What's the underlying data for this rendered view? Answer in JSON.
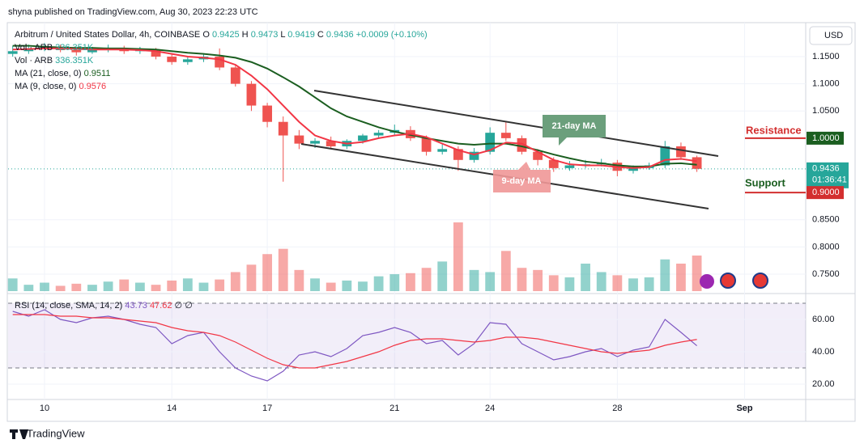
{
  "header": {
    "publisher": "shyna published on TradingView.com, Aug 30, 2023 22:23 UTC",
    "currency": "USD",
    "footer": "TradingView"
  },
  "chart_data": [
    {
      "type": "candlestick",
      "legend": {
        "symbol": "Arbitrum / United States Dollar, 4h, COINBASE",
        "ohlc": [
          {
            "key": "O",
            "value": 0.9425
          },
          {
            "key": "H",
            "value": 0.9473
          },
          {
            "key": "L",
            "value": 0.9419
          },
          {
            "key": "C",
            "value": 0.9436
          }
        ],
        "change": "+0.0009 (+0.10%)",
        "volume": [
          {
            "name": "Vol · ARB",
            "value": "336.351K"
          },
          {
            "name": "Vol · ARB",
            "value": "336.351K"
          }
        ],
        "mas": [
          {
            "name": "MA (21, close, 0)",
            "value": 0.9511
          },
          {
            "name": "MA (9, close, 0)",
            "value": 0.9576
          }
        ]
      },
      "x": [
        9,
        9.5,
        10,
        10.5,
        11,
        11.5,
        12,
        12.5,
        13,
        13.5,
        14,
        14.5,
        15,
        15.5,
        16,
        16.5,
        17,
        17.5,
        18,
        18.5,
        19,
        19.5,
        20,
        20.5,
        21,
        21.5,
        22,
        22.5,
        23,
        23.5,
        24,
        24.5,
        25,
        25.5,
        26,
        26.5,
        27,
        27.5,
        28,
        28.5,
        29,
        29.5,
        30,
        30.5
      ],
      "open": [
        1.155,
        1.16,
        1.165,
        1.168,
        1.162,
        1.158,
        1.163,
        1.165,
        1.16,
        1.162,
        1.15,
        1.14,
        1.145,
        1.15,
        1.13,
        1.1,
        1.06,
        1.03,
        1.005,
        0.99,
        0.995,
        0.985,
        0.995,
        1.005,
        1.01,
        1.015,
        1.0,
        0.975,
        0.98,
        0.96,
        0.975,
        1.01,
        1.0,
        0.975,
        0.96,
        0.945,
        0.95,
        0.952,
        0.955,
        0.94,
        0.945,
        0.95,
        0.985,
        0.965
      ],
      "high": [
        1.17,
        1.172,
        1.175,
        1.172,
        1.166,
        1.168,
        1.172,
        1.17,
        1.168,
        1.166,
        1.155,
        1.15,
        1.155,
        1.165,
        1.135,
        1.105,
        1.065,
        1.04,
        1.015,
        1.0,
        1.003,
        0.998,
        1.008,
        1.015,
        1.025,
        1.022,
        1.005,
        0.99,
        0.985,
        0.982,
        1.02,
        1.03,
        1.005,
        0.98,
        0.965,
        0.958,
        0.96,
        0.962,
        0.96,
        0.95,
        0.955,
        0.995,
        0.992,
        0.968
      ],
      "low": [
        1.15,
        1.155,
        1.16,
        1.158,
        1.152,
        1.155,
        1.158,
        1.155,
        1.155,
        1.145,
        1.135,
        1.135,
        1.14,
        1.125,
        1.095,
        1.05,
        1.02,
        0.92,
        0.98,
        0.982,
        0.98,
        0.98,
        0.99,
        1.0,
        1.005,
        0.995,
        0.968,
        0.97,
        0.94,
        0.955,
        0.97,
        0.995,
        0.97,
        0.95,
        0.938,
        0.94,
        0.945,
        0.948,
        0.93,
        0.935,
        0.942,
        0.945,
        0.96,
        0.938
      ],
      "close": [
        1.16,
        1.165,
        1.168,
        1.162,
        1.158,
        1.163,
        1.165,
        1.16,
        1.162,
        1.15,
        1.14,
        1.145,
        1.15,
        1.13,
        1.1,
        1.06,
        1.03,
        1.005,
        0.99,
        0.995,
        0.985,
        0.995,
        1.005,
        1.01,
        1.015,
        1.0,
        0.975,
        0.98,
        0.96,
        0.975,
        1.01,
        1.0,
        0.975,
        0.96,
        0.945,
        0.95,
        0.952,
        0.955,
        0.94,
        0.945,
        0.95,
        0.985,
        0.965,
        0.9436
      ],
      "volume": [
        120,
        60,
        80,
        50,
        70,
        60,
        90,
        110,
        80,
        60,
        100,
        120,
        80,
        110,
        180,
        250,
        350,
        400,
        200,
        120,
        80,
        100,
        90,
        140,
        160,
        170,
        220,
        280,
        650,
        200,
        180,
        380,
        220,
        200,
        150,
        130,
        260,
        180,
        150,
        120,
        130,
        300,
        260,
        336.351
      ],
      "series": [
        {
          "name": "MA 21",
          "color": "#1b5e20",
          "values": [
            1.17,
            1.17,
            1.168,
            1.167,
            1.166,
            1.166,
            1.165,
            1.165,
            1.164,
            1.163,
            1.16,
            1.157,
            1.155,
            1.152,
            1.148,
            1.14,
            1.128,
            1.112,
            1.095,
            1.075,
            1.055,
            1.04,
            1.03,
            1.02,
            1.012,
            1.006,
            1.0,
            0.995,
            0.99,
            0.988,
            0.99,
            0.99,
            0.985,
            0.978,
            0.97,
            0.963,
            0.957,
            0.954,
            0.95,
            0.948,
            0.948,
            0.953,
            0.954,
            0.9511
          ]
        },
        {
          "name": "MA 9",
          "color": "#f23645",
          "values": [
            1.163,
            1.164,
            1.165,
            1.165,
            1.164,
            1.163,
            1.163,
            1.163,
            1.162,
            1.16,
            1.155,
            1.15,
            1.148,
            1.145,
            1.135,
            1.115,
            1.09,
            1.06,
            1.03,
            1.005,
            0.995,
            0.99,
            0.993,
            1.0,
            1.005,
            1.008,
            1.002,
            0.99,
            0.978,
            0.97,
            0.978,
            0.992,
            0.99,
            0.975,
            0.96,
            0.952,
            0.95,
            0.95,
            0.947,
            0.945,
            0.947,
            0.96,
            0.962,
            0.9576
          ]
        }
      ],
      "up_color": "#26a69a",
      "down_color": "#ef5350",
      "xlim": [
        8.855,
        33.92
      ],
      "ylim": [
        0.7188,
        1.2095
      ],
      "xticks": [
        10,
        14,
        17,
        21,
        24,
        28,
        {
          "value": 32,
          "label": "Sep"
        }
      ],
      "yticks": [
        {
          "value": 0.75,
          "label": "0.7500"
        },
        {
          "value": 0.8,
          "label": "0.8000"
        },
        {
          "value": 0.85,
          "label": "0.8500"
        },
        {
          "value": 1.05,
          "label": "1.0500"
        },
        {
          "value": 1.1,
          "label": "1.1000"
        },
        {
          "value": 1.15,
          "label": "1.1500"
        }
      ],
      "annotations": {
        "ma21": "21-day MA",
        "ma9": "9-day MA",
        "resistance": "Resistance",
        "support": "Support"
      },
      "levels": [
        {
          "value": 1,
          "label": "1.0000"
        },
        {
          "value": 0.9,
          "label": "0.9000"
        }
      ],
      "last": {
        "value": 0.9436,
        "label": "0.9436",
        "countdown": "01:36:41"
      }
    },
    {
      "type": "line",
      "legend": {
        "name": "RSI (14, close, SMA, 14, 2)",
        "values": [
          43.73,
          47.62
        ],
        "empty": [
          "∅",
          "∅"
        ]
      },
      "series": [
        {
          "name": "RSI",
          "color": "#7e57c2",
          "values": [
            65,
            62,
            66,
            60,
            58,
            61,
            62,
            60,
            57,
            55,
            45,
            50,
            52,
            40,
            30,
            25,
            22,
            28,
            38,
            40,
            37,
            42,
            50,
            52,
            55,
            52,
            45,
            47,
            38,
            45,
            58,
            57,
            45,
            40,
            35,
            37,
            40,
            42,
            37,
            41,
            43,
            60,
            52,
            43.73
          ]
        },
        {
          "name": "RSI SMA",
          "color": "#f23645",
          "values": [
            63,
            63,
            63,
            62,
            62,
            61,
            61,
            60,
            59,
            58,
            55,
            53,
            52,
            50,
            46,
            41,
            36,
            32,
            30,
            30,
            32,
            34,
            37,
            40,
            44,
            47,
            48,
            48,
            47,
            46,
            47,
            49,
            49,
            48,
            46,
            44,
            42,
            40,
            39,
            40,
            41,
            44,
            46,
            47.62
          ]
        }
      ],
      "ylim": [
        10,
        72.5
      ],
      "band": [
        30,
        70
      ],
      "yticks": [
        {
          "value": 20,
          "label": "20.00"
        },
        {
          "value": 40,
          "label": "40.00"
        },
        {
          "value": 60,
          "label": "60.00"
        }
      ]
    }
  ]
}
